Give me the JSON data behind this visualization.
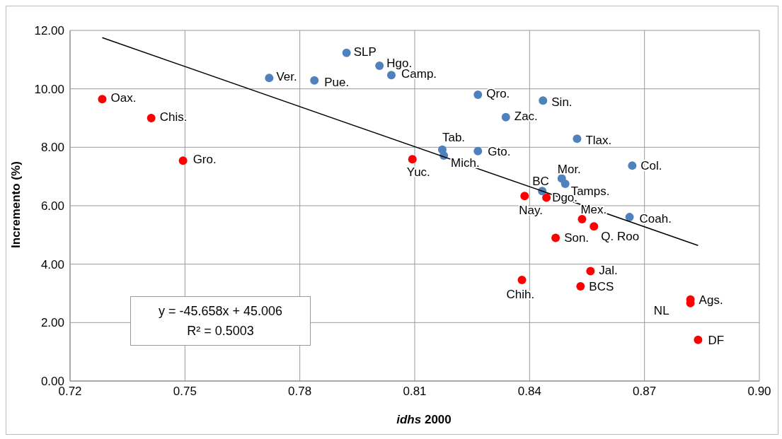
{
  "chart_data": {
    "type": "scatter",
    "xlabel": "idhs 2000",
    "ylabel": "Incremento (%)",
    "xlim": [
      0.72,
      0.9
    ],
    "xticks": [
      0.72,
      0.75,
      0.78,
      0.81,
      0.84,
      0.87,
      {
        "value": 0.9,
        "label": "0.90"
      }
    ],
    "ylim": [
      0,
      12
    ],
    "yticks": [
      {
        "value": 0,
        "label": "0.00"
      },
      {
        "value": 2,
        "label": "2.00"
      },
      {
        "value": 4,
        "label": "4.00"
      },
      {
        "value": 6,
        "label": "6.00"
      },
      {
        "value": 8,
        "label": "8.00"
      },
      {
        "value": 10,
        "label": "10.00"
      },
      {
        "value": 12,
        "label": "12.00"
      }
    ],
    "grid": true,
    "legend": false,
    "marker": "circle",
    "series": [
      {
        "color": "#ff0000",
        "x": [
          0.7284,
          0.7412,
          0.7495,
          0.8094,
          0.8387,
          0.8444,
          0.8468,
          0.8537,
          0.8568,
          0.8559,
          0.838,
          0.8533,
          0.882,
          0.882,
          0.884
        ],
        "values": [
          9.65,
          9.0,
          7.54,
          7.59,
          6.33,
          6.28,
          4.9,
          5.54,
          5.29,
          3.76,
          3.46,
          3.24,
          2.79,
          2.67,
          1.41
        ]
      },
      {
        "color": "#4f81bd",
        "x": [
          0.7922,
          0.8008,
          0.8039,
          0.772,
          0.7838,
          0.8265,
          0.8435,
          0.8338,
          0.8524,
          0.8172,
          0.8176,
          0.8265,
          0.8668,
          0.8484,
          0.8493,
          0.8433,
          0.8661
        ],
        "values": [
          11.23,
          10.79,
          10.47,
          10.37,
          10.29,
          9.8,
          9.6,
          9.03,
          8.29,
          7.92,
          7.72,
          7.87,
          7.37,
          6.93,
          6.75,
          6.5,
          5.61
        ]
      },
      {
        "type": "line",
        "color": "#000000",
        "marker": "none",
        "x": [
          0.7284,
          0.884
        ],
        "values": [
          11.75,
          4.64
        ]
      }
    ],
    "annotations": [
      {
        "text": "Oax.",
        "x": 0.7284,
        "y": 9.65
      },
      {
        "text": "Chis.",
        "x": 0.7412,
        "y": 9.0
      },
      {
        "text": "Gro.",
        "x": 0.7495,
        "y": 7.54
      },
      {
        "text": "Yuc.",
        "x": 0.8094,
        "y": 7.59
      },
      {
        "text": "Nay.",
        "x": 0.8387,
        "y": 6.33
      },
      {
        "text": "Dgo.",
        "x": 0.8444,
        "y": 6.28
      },
      {
        "text": "Son.",
        "x": 0.8468,
        "y": 4.9
      },
      {
        "text": "Mex.",
        "x": 0.8537,
        "y": 5.54
      },
      {
        "text": "Q. Roo",
        "x": 0.8568,
        "y": 5.29
      },
      {
        "text": "Jal.",
        "x": 0.8559,
        "y": 3.76
      },
      {
        "text": "Chih.",
        "x": 0.838,
        "y": 3.46
      },
      {
        "text": "BCS",
        "x": 0.8533,
        "y": 3.24
      },
      {
        "text": "Ags.",
        "x": 0.882,
        "y": 2.79
      },
      {
        "text": "NL",
        "x": 0.882,
        "y": 2.67
      },
      {
        "text": "DF",
        "x": 0.884,
        "y": 1.41
      },
      {
        "text": "SLP",
        "x": 0.7922,
        "y": 11.23
      },
      {
        "text": "Hgo.",
        "x": 0.8008,
        "y": 10.79
      },
      {
        "text": "Camp.",
        "x": 0.8039,
        "y": 10.47
      },
      {
        "text": "Ver.",
        "x": 0.772,
        "y": 10.37
      },
      {
        "text": "Pue.",
        "x": 0.7838,
        "y": 10.29
      },
      {
        "text": "Qro.",
        "x": 0.8265,
        "y": 9.8
      },
      {
        "text": "Sin.",
        "x": 0.8435,
        "y": 9.6
      },
      {
        "text": "Zac.",
        "x": 0.8338,
        "y": 9.03
      },
      {
        "text": "Tlax.",
        "x": 0.8524,
        "y": 8.29
      },
      {
        "text": "Tab.",
        "x": 0.8172,
        "y": 7.92
      },
      {
        "text": "Mich.",
        "x": 0.8176,
        "y": 7.72
      },
      {
        "text": "Gto.",
        "x": 0.8265,
        "y": 7.87
      },
      {
        "text": "Col.",
        "x": 0.8668,
        "y": 7.37
      },
      {
        "text": "Mor.",
        "x": 0.8484,
        "y": 6.93
      },
      {
        "text": "Tamps.",
        "x": 0.8493,
        "y": 6.75
      },
      {
        "text": "BC",
        "x": 0.8433,
        "y": 6.5
      },
      {
        "text": "Coah.",
        "x": 0.8661,
        "y": 5.61
      },
      "y = -45.658x + 45.006",
      "R² = 0.5003"
    ]
  }
}
